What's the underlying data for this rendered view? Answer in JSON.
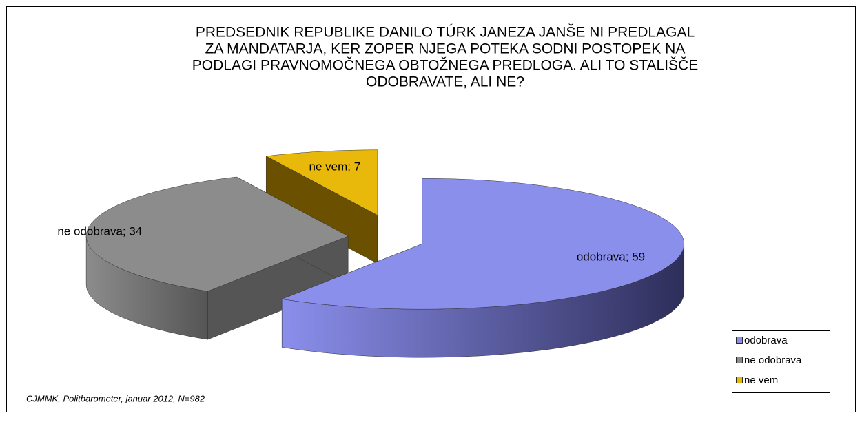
{
  "chart_data": {
    "type": "pie3d",
    "title": [
      "PREDSEDNIK REPUBLIKE DANILO TÚRK JANEZA JANŠE NI PREDLAGAL",
      "ZA MANDATARJA,  KER ZOPER NJEGA POTEKA SODNI POSTOPEK NA",
      "PODLAGI PRAVNOMOČNEGA OBTOŽNEGA PREDLOGA. ALI TO STALIŠČE",
      "ODOBRAVATE, ALI NE?"
    ],
    "categories": [
      "odobrava",
      "ne odobrava",
      "ne vem"
    ],
    "values": [
      59,
      34,
      7
    ],
    "value_labels": [
      "odobrava; 59",
      "ne odobrava; 34",
      "ne vem; 7"
    ],
    "colors": [
      "#8b8fec",
      "#8c8c8c",
      "#e8b80a"
    ],
    "legend": "bottom-right",
    "source": "CJMMK, Politbarometer, januar 2012,  N=982"
  }
}
